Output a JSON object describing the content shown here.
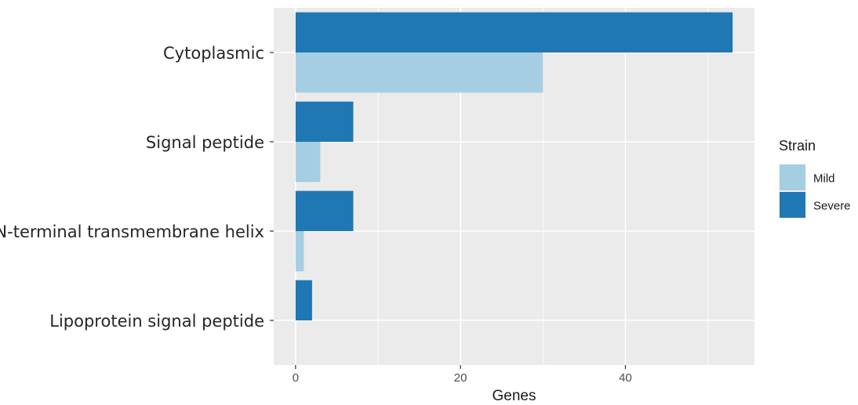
{
  "chart_data": {
    "type": "bar",
    "orientation": "horizontal",
    "categories": [
      "Cytoplasmic",
      "Signal peptide",
      "N-terminal transmembrane helix",
      "Lipoprotein signal peptide"
    ],
    "series": [
      {
        "name": "Mild",
        "values": [
          30,
          3,
          1,
          0
        ],
        "color": "#a6cee3"
      },
      {
        "name": "Severe",
        "values": [
          53,
          7,
          7,
          2
        ],
        "color": "#1f78b4"
      }
    ],
    "xlabel": "Genes",
    "ylabel": "",
    "xlim": [
      -2.65,
      55.65
    ],
    "xticks": [
      0,
      20,
      40
    ],
    "xtick_labels": [
      "0",
      "20",
      "40"
    ],
    "grid": true,
    "legend": {
      "title": "Strain",
      "position": "right",
      "entries": [
        "Mild",
        "Severe"
      ]
    },
    "panel_background": "#ebebeb"
  }
}
